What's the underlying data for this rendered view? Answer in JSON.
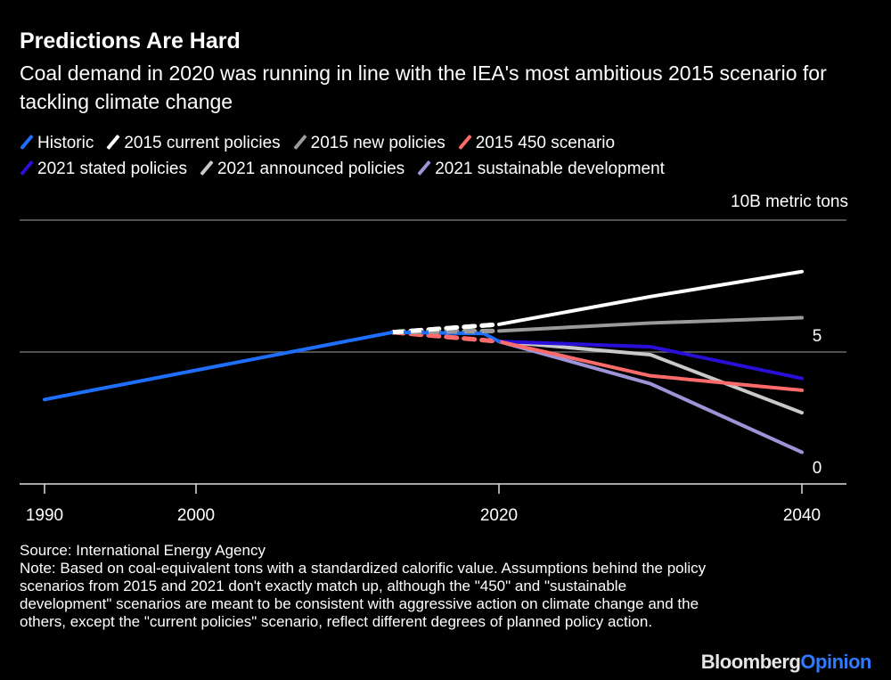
{
  "title": "Predictions Are Hard",
  "subtitle": "Coal demand in 2020 was running in line with the IEA's most ambitious 2015 scenario for tackling climate change",
  "footer": {
    "source": "Source: International Energy Agency",
    "note": "Note: Based on coal-equivalent tons with a standardized calorific value. Assumptions behind the policy scenarios from 2015 and 2021 don't exactly match up, although the \"450\" and \"sustainable development\" scenarios are meant to be consistent with aggressive action on climate change and the others, except the \"current policies\" scenario, reflect different degrees of planned policy action."
  },
  "logo": {
    "part1": "Bloomberg",
    "part2": "Opinion",
    "color1": "#e6e6e6",
    "color2": "#2f7bff"
  },
  "chart_data": {
    "type": "line",
    "title": "Predictions Are Hard",
    "ylabel": "10B metric tons",
    "xlim": [
      1989,
      2043
    ],
    "ylim": [
      0,
      10
    ],
    "x_ticks": [
      "1990",
      "2000",
      "2020",
      "2040"
    ],
    "y_ticks": [
      "0",
      "5"
    ],
    "grid": true,
    "legend_position": "top",
    "series": [
      {
        "name": "Historic",
        "color": "#1f6fff",
        "dashed": false,
        "x": [
          1990,
          2013,
          2019,
          2020
        ],
        "y": [
          3.2,
          5.75,
          5.7,
          5.4
        ]
      },
      {
        "name": "2015 current policies",
        "color": "#ffffff",
        "dashed_until": 2020,
        "x": [
          2013,
          2020,
          2030,
          2040
        ],
        "y": [
          5.75,
          6.05,
          7.1,
          8.05
        ]
      },
      {
        "name": "2015 new policies",
        "color": "#9a9a9a",
        "dashed_until": 2020,
        "x": [
          2013,
          2020,
          2030,
          2040
        ],
        "y": [
          5.75,
          5.8,
          6.1,
          6.3
        ]
      },
      {
        "name": "2015 450 scenario",
        "color": "#ff6b6b",
        "dashed_until": 2020,
        "x": [
          2013,
          2020,
          2030,
          2040
        ],
        "y": [
          5.75,
          5.4,
          4.1,
          3.55
        ]
      },
      {
        "name": "2021 stated policies",
        "color": "#2a0fd9",
        "x": [
          2020,
          2030,
          2040
        ],
        "y": [
          5.4,
          5.2,
          4.0
        ]
      },
      {
        "name": "2021 announced policies",
        "color": "#c9c9c9",
        "x": [
          2020,
          2030,
          2040
        ],
        "y": [
          5.4,
          4.9,
          2.7
        ]
      },
      {
        "name": "2021 sustainable development",
        "color": "#9c94d6",
        "x": [
          2020,
          2030,
          2040
        ],
        "y": [
          5.4,
          3.8,
          1.2
        ]
      }
    ]
  }
}
